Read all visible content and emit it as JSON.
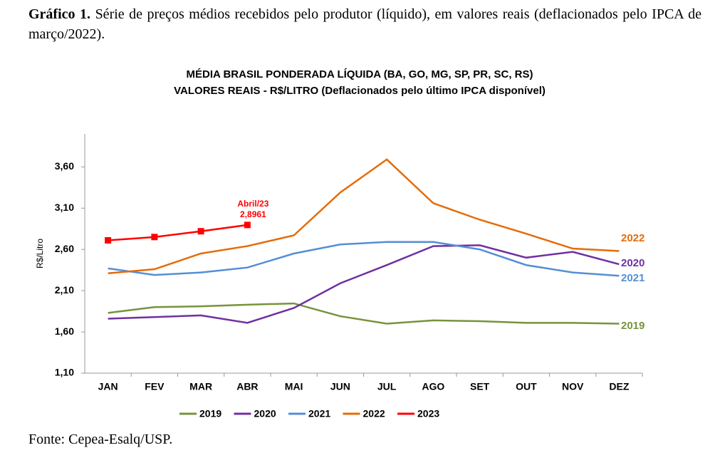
{
  "caption": {
    "label": "Gráfico 1.",
    "text": "Série de preços médios recebidos pelo produtor (líquido), em valores reais (deflacionados pelo IPCA de março/2022)."
  },
  "chart_data": {
    "type": "line",
    "title": [
      "MÉDIA BRASIL PONDERADA LÍQUIDA (BA, GO, MG, SP, PR, SC, RS)",
      "VALORES REAIS - R$/LITRO (Deflacionados  pelo último IPCA disponível)"
    ],
    "y_label": "R$/Litro",
    "categories": [
      "JAN",
      "FEV",
      "MAR",
      "ABR",
      "MAI",
      "JUN",
      "JUL",
      "AGO",
      "SET",
      "OUT",
      "NOV",
      "DEZ"
    ],
    "ylim": [
      1.1,
      4.0
    ],
    "yticks": [
      {
        "value": 1.1,
        "label": "1,10"
      },
      {
        "value": 1.6,
        "label": "1,60"
      },
      {
        "value": 2.1,
        "label": "2,10"
      },
      {
        "value": 2.6,
        "label": "2,60"
      },
      {
        "value": 3.1,
        "label": "3,10"
      },
      {
        "value": 3.6,
        "label": "3,60"
      }
    ],
    "grid": false,
    "legend": "bottom",
    "series": [
      {
        "name": "2019",
        "color": "#77933c",
        "values": [
          1.83,
          1.9,
          1.91,
          1.93,
          1.945,
          1.79,
          1.7,
          1.74,
          1.73,
          1.71,
          1.71,
          1.7
        ]
      },
      {
        "name": "2020",
        "color": "#7030a0",
        "values": [
          1.76,
          1.78,
          1.8,
          1.71,
          1.89,
          2.19,
          2.41,
          2.64,
          2.65,
          2.5,
          2.57,
          2.42
        ]
      },
      {
        "name": "2021",
        "color": "#558ed5",
        "values": [
          2.37,
          2.29,
          2.32,
          2.38,
          2.55,
          2.66,
          2.69,
          2.69,
          2.6,
          2.41,
          2.32,
          2.28
        ]
      },
      {
        "name": "2022",
        "color": "#e46c0a",
        "values": [
          2.31,
          2.36,
          2.55,
          2.64,
          2.77,
          3.29,
          3.69,
          3.16,
          2.96,
          2.79,
          2.61,
          2.58
        ]
      },
      {
        "name": "2023",
        "color": "#ff0000",
        "marker": "square",
        "values": [
          2.71,
          2.75,
          2.82,
          2.8961,
          null,
          null,
          null,
          null,
          null,
          null,
          null,
          null
        ],
        "value_labels": [
          null,
          null,
          null,
          "2,8961",
          null,
          null,
          null,
          null,
          null,
          null,
          null,
          null
        ]
      }
    ],
    "annotation": "Abril/23"
  },
  "source": "Fonte: Cepea-Esalq/USP."
}
